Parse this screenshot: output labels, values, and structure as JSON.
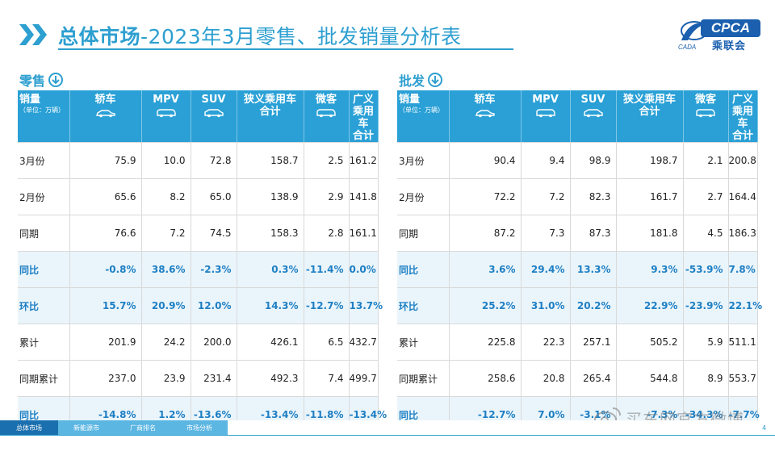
{
  "header": {
    "title_bold": "总体市场",
    "title_rest": "-2023年3月零售、批发销量分析表",
    "logo_text": "CPCA",
    "logo_cn": "乘联会",
    "logo_sub": "CADA"
  },
  "colors": {
    "accent": "#2d9fd0",
    "header_blue": "#2aa0d6",
    "rate_blue": "#1e7fc4",
    "nav_dark": "#1a6fae",
    "nav_light": "#5cb6e2"
  },
  "retail": {
    "label": "零售",
    "header": {
      "first_main": "销量",
      "first_sub": "（单位：万辆）",
      "cols": [
        "轿车",
        "MPV",
        "SUV",
        "狭义乘用车\n合计",
        "微客",
        "广义乘用车\n合计"
      ]
    },
    "rows": [
      {
        "label": "3月份",
        "values": [
          "75.9",
          "10.0",
          "72.8",
          "158.7",
          "2.5",
          "161.2"
        ]
      },
      {
        "label": "2月份",
        "values": [
          "65.6",
          "8.2",
          "65.0",
          "138.9",
          "2.9",
          "141.8"
        ]
      },
      {
        "label": "同期",
        "values": [
          "76.6",
          "7.2",
          "74.5",
          "158.3",
          "2.8",
          "161.1"
        ]
      },
      {
        "label": "同比",
        "values": [
          "-0.8%",
          "38.6%",
          "-2.3%",
          "0.3%",
          "-11.4%",
          "0.0%"
        ]
      },
      {
        "label": "环比",
        "values": [
          "15.7%",
          "20.9%",
          "12.0%",
          "14.3%",
          "-12.7%",
          "13.7%"
        ]
      },
      {
        "label": "累计",
        "values": [
          "201.9",
          "24.2",
          "200.0",
          "426.1",
          "6.5",
          "432.7"
        ]
      },
      {
        "label": "同期累计",
        "values": [
          "237.0",
          "23.9",
          "231.4",
          "492.3",
          "7.4",
          "499.7"
        ]
      },
      {
        "label": "同比",
        "values": [
          "-14.8%",
          "1.2%",
          "-13.6%",
          "-13.4%",
          "-11.8%",
          "-13.4%"
        ]
      }
    ]
  },
  "wholesale": {
    "label": "批发",
    "header": {
      "first_main": "销量",
      "first_sub": "（单位：万辆）",
      "cols": [
        "轿车",
        "MPV",
        "SUV",
        "狭义乘用车\n合计",
        "微客",
        "广义乘用车\n合计"
      ]
    },
    "rows": [
      {
        "label": "3月份",
        "values": [
          "90.4",
          "9.4",
          "98.9",
          "198.7",
          "2.1",
          "200.8"
        ]
      },
      {
        "label": "2月份",
        "values": [
          "72.2",
          "7.2",
          "82.3",
          "161.7",
          "2.7",
          "164.4"
        ]
      },
      {
        "label": "同期",
        "values": [
          "87.2",
          "7.3",
          "87.3",
          "181.8",
          "4.5",
          "186.3"
        ]
      },
      {
        "label": "同比",
        "values": [
          "3.6%",
          "29.4%",
          "13.3%",
          "9.3%",
          "-53.9%",
          "7.8%"
        ]
      },
      {
        "label": "环比",
        "values": [
          "25.2%",
          "31.0%",
          "20.2%",
          "22.9%",
          "-23.9%",
          "22.1%"
        ]
      },
      {
        "label": "累计",
        "values": [
          "225.8",
          "22.3",
          "257.1",
          "505.2",
          "5.9",
          "511.1"
        ]
      },
      {
        "label": "同期累计",
        "values": [
          "258.6",
          "20.8",
          "265.4",
          "544.8",
          "8.9",
          "553.7"
        ]
      },
      {
        "label": "同比",
        "values": [
          "-12.7%",
          "7.0%",
          "-3.1%",
          "-7.3%",
          "-34.3%",
          "-7.7%"
        ]
      }
    ]
  },
  "bottom_nav": {
    "items": [
      "总体市场",
      "新能源市场",
      "厂商排名",
      "市场分析"
    ],
    "active_index": 0
  },
  "page_number": "4",
  "watermark": "买车网官方微博"
}
